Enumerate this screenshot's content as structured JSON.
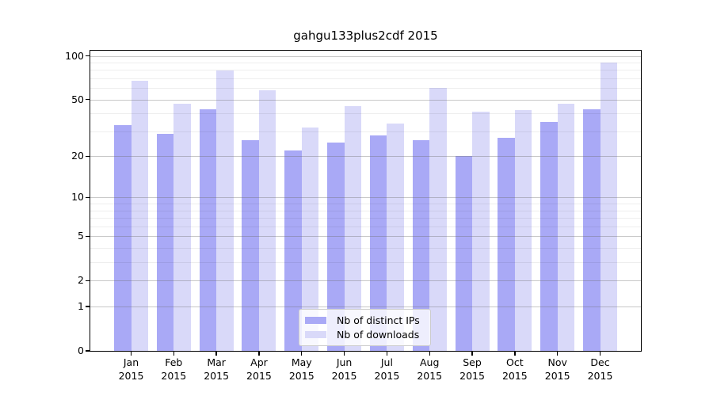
{
  "figure": {
    "title": "gahgu133plus2cdf 2015"
  },
  "legend": {
    "items": [
      {
        "label": "Nb of distinct IPs",
        "color": "#a9a9f6"
      },
      {
        "label": "Nb of downloads",
        "color": "#d9d9f9"
      }
    ]
  },
  "colors": {
    "bar_distinct_ips": "#a9a9f6",
    "bar_downloads": "#d9d9f9",
    "grid_major": "#c8c8c8",
    "grid_minor": "#efefef",
    "axis": "#000000",
    "background": "#ffffff"
  },
  "chart_data": {
    "type": "bar",
    "title": "gahgu133plus2cdf 2015",
    "categories": [
      "Jan",
      "Feb",
      "Mar",
      "Apr",
      "May",
      "Jun",
      "Jul",
      "Aug",
      "Sep",
      "Oct",
      "Nov",
      "Dec"
    ],
    "category_year": "2015",
    "series": [
      {
        "name": "Nb of distinct IPs",
        "color": "#a9a9f6",
        "values": [
          33,
          29,
          43,
          26,
          22,
          25,
          28,
          26,
          20,
          27,
          35,
          43
        ]
      },
      {
        "name": "Nb of downloads",
        "color": "#d9d9f9",
        "values": [
          67,
          47,
          79,
          58,
          32,
          45,
          34,
          60,
          41,
          42,
          47,
          90
        ]
      }
    ],
    "xlabel": "",
    "ylabel": "",
    "yscale": "log1p",
    "ylim": [
      0,
      110
    ],
    "yticks": [
      0,
      1,
      2,
      5,
      10,
      20,
      50,
      100
    ],
    "yticks_minor": [
      3,
      4,
      6,
      7,
      8,
      9,
      30,
      40,
      60,
      70,
      80,
      90
    ],
    "grid": true,
    "legend_position": "lower center"
  }
}
